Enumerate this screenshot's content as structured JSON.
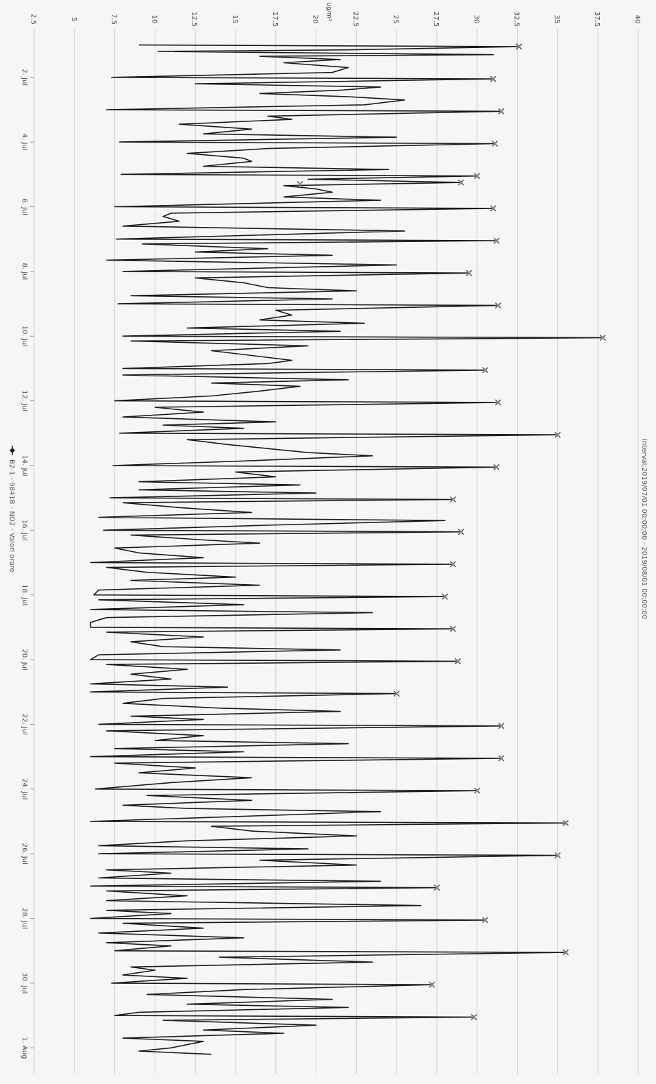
{
  "chart_data": {
    "type": "line",
    "orientation": "rotated-90-clockwise",
    "y_axis_title": "ug/m³",
    "interval_label": "Interval:2019/07/01 00:00:00 - 2019/08/01 00:00:00",
    "legend_label": "B2-1 - 9841B - NO2 - Valori orare",
    "ylim": [
      2.5,
      40
    ],
    "y_ticks": [
      "2.5",
      "5",
      "7.5",
      "10",
      "12.5",
      "15",
      "17.5",
      "20",
      "22.5",
      "25",
      "27.5",
      "30",
      "32.5",
      "35",
      "37.5",
      "40"
    ],
    "x_range_days": [
      0.5,
      32.8
    ],
    "x_ticks": [
      {
        "label": "2. Jul",
        "day": 2
      },
      {
        "label": "4. Jul",
        "day": 4
      },
      {
        "label": "6. Jul",
        "day": 6
      },
      {
        "label": "8. Jul",
        "day": 8
      },
      {
        "label": "10. Jul",
        "day": 10
      },
      {
        "label": "12. Jul",
        "day": 12
      },
      {
        "label": "14. Jul",
        "day": 14
      },
      {
        "label": "16. Jul",
        "day": 16
      },
      {
        "label": "18. Jul",
        "day": 18
      },
      {
        "label": "20. Jul",
        "day": 20
      },
      {
        "label": "22. Jul",
        "day": 22
      },
      {
        "label": "24. Jul",
        "day": 24
      },
      {
        "label": "26. Jul",
        "day": 26
      },
      {
        "label": "28. Jul",
        "day": 28
      },
      {
        "label": "30. Jul",
        "day": 30
      },
      {
        "label": "1. Aug",
        "day": 32
      }
    ],
    "grid": true,
    "legend_position": "bottom",
    "series": [
      {
        "color": "#1a1a1a",
        "values": [
          [
            1.0,
            9.0
          ],
          [
            1.05,
            32.6
          ],
          [
            1.15,
            22.0
          ],
          [
            1.2,
            10.2
          ],
          [
            1.3,
            31.0
          ],
          [
            1.35,
            16.5
          ],
          [
            1.45,
            21.5
          ],
          [
            1.55,
            18.0
          ],
          [
            1.7,
            22.0
          ],
          [
            1.85,
            21.0
          ],
          [
            2.0,
            7.3
          ],
          [
            2.05,
            31.0
          ],
          [
            2.2,
            12.5
          ],
          [
            2.3,
            24.0
          ],
          [
            2.4,
            21.5
          ],
          [
            2.5,
            16.5
          ],
          [
            2.6,
            22.0
          ],
          [
            2.7,
            25.5
          ],
          [
            2.85,
            23.0
          ],
          [
            3.0,
            7.0
          ],
          [
            3.05,
            31.5
          ],
          [
            3.2,
            17.0
          ],
          [
            3.3,
            18.5
          ],
          [
            3.45,
            11.5
          ],
          [
            3.6,
            16.0
          ],
          [
            3.75,
            13.0
          ],
          [
            3.85,
            25.0
          ],
          [
            4.0,
            7.8
          ],
          [
            4.05,
            31.1
          ],
          [
            4.2,
            17.0
          ],
          [
            4.35,
            12.0
          ],
          [
            4.5,
            15.5
          ],
          [
            4.6,
            16.0
          ],
          [
            4.75,
            13.0
          ],
          [
            4.85,
            24.5
          ],
          [
            5.0,
            7.9
          ],
          [
            5.05,
            30.0
          ],
          [
            5.15,
            19.5
          ],
          [
            5.25,
            29.0
          ],
          [
            5.35,
            18.0
          ],
          [
            5.45,
            20.0
          ],
          [
            5.55,
            21.0
          ],
          [
            5.7,
            18.0
          ],
          [
            5.8,
            24.0
          ],
          [
            6.0,
            7.5
          ],
          [
            6.05,
            31.0
          ],
          [
            6.2,
            11.0
          ],
          [
            6.3,
            10.5
          ],
          [
            6.45,
            11.5
          ],
          [
            6.6,
            8.0
          ],
          [
            6.75,
            25.5
          ],
          [
            7.0,
            7.6
          ],
          [
            7.05,
            31.2
          ],
          [
            7.15,
            9.2
          ],
          [
            7.3,
            17.0
          ],
          [
            7.4,
            12.5
          ],
          [
            7.5,
            21.0
          ],
          [
            7.65,
            7.0
          ],
          [
            7.8,
            25.0
          ],
          [
            8.0,
            8.0
          ],
          [
            8.05,
            29.5
          ],
          [
            8.2,
            12.5
          ],
          [
            8.35,
            15.5
          ],
          [
            8.5,
            17.0
          ],
          [
            8.6,
            22.5
          ],
          [
            8.75,
            8.5
          ],
          [
            8.85,
            21.0
          ],
          [
            9.0,
            7.7
          ],
          [
            9.05,
            31.3
          ],
          [
            9.2,
            17.5
          ],
          [
            9.35,
            18.5
          ],
          [
            9.5,
            16.5
          ],
          [
            9.6,
            23.0
          ],
          [
            9.75,
            12.0
          ],
          [
            9.85,
            21.5
          ],
          [
            10.0,
            8.0
          ],
          [
            10.05,
            37.8
          ],
          [
            10.15,
            8.5
          ],
          [
            10.3,
            19.5
          ],
          [
            10.45,
            13.5
          ],
          [
            10.6,
            16.0
          ],
          [
            10.75,
            18.5
          ],
          [
            10.85,
            17.0
          ],
          [
            11.0,
            8.0
          ],
          [
            11.05,
            30.5
          ],
          [
            11.2,
            8.0
          ],
          [
            11.35,
            22.0
          ],
          [
            11.45,
            13.5
          ],
          [
            11.55,
            19.0
          ],
          [
            11.7,
            16.5
          ],
          [
            11.85,
            13.5
          ],
          [
            12.0,
            7.5
          ],
          [
            12.05,
            31.3
          ],
          [
            12.2,
            10.0
          ],
          [
            12.35,
            13.0
          ],
          [
            12.5,
            8.0
          ],
          [
            12.65,
            17.5
          ],
          [
            12.75,
            10.5
          ],
          [
            12.85,
            15.5
          ],
          [
            13.0,
            7.8
          ],
          [
            13.05,
            35.0
          ],
          [
            13.2,
            12.0
          ],
          [
            13.35,
            14.5
          ],
          [
            13.5,
            17.5
          ],
          [
            13.6,
            19.5
          ],
          [
            13.7,
            23.5
          ],
          [
            13.85,
            16.0
          ],
          [
            14.0,
            7.4
          ],
          [
            14.05,
            31.2
          ],
          [
            14.2,
            15.0
          ],
          [
            14.35,
            17.5
          ],
          [
            14.5,
            9.0
          ],
          [
            14.6,
            19.0
          ],
          [
            14.75,
            9.0
          ],
          [
            14.85,
            20.0
          ],
          [
            15.0,
            7.2
          ],
          [
            15.05,
            28.5
          ],
          [
            15.15,
            8.0
          ],
          [
            15.3,
            11.5
          ],
          [
            15.45,
            16.0
          ],
          [
            15.6,
            6.5
          ],
          [
            15.7,
            28.0
          ],
          [
            15.85,
            16.5
          ],
          [
            16.0,
            6.8
          ],
          [
            16.05,
            29.0
          ],
          [
            16.15,
            8.5
          ],
          [
            16.3,
            13.0
          ],
          [
            16.4,
            16.5
          ],
          [
            16.55,
            7.5
          ],
          [
            16.7,
            9.0
          ],
          [
            16.85,
            13.0
          ],
          [
            17.0,
            6.0
          ],
          [
            17.05,
            28.5
          ],
          [
            17.15,
            7.0
          ],
          [
            17.3,
            9.5
          ],
          [
            17.45,
            15.0
          ],
          [
            17.55,
            8.5
          ],
          [
            17.7,
            16.5
          ],
          [
            17.85,
            6.5
          ],
          [
            18.0,
            6.2
          ],
          [
            18.05,
            28.0
          ],
          [
            18.15,
            6.5
          ],
          [
            18.3,
            15.5
          ],
          [
            18.45,
            6.0
          ],
          [
            18.55,
            23.5
          ],
          [
            18.7,
            7.0
          ],
          [
            18.85,
            6.0
          ],
          [
            19.0,
            6.0
          ],
          [
            19.05,
            28.5
          ],
          [
            19.15,
            7.0
          ],
          [
            19.3,
            13.0
          ],
          [
            19.45,
            8.5
          ],
          [
            19.6,
            10.5
          ],
          [
            19.7,
            21.5
          ],
          [
            19.85,
            6.5
          ],
          [
            20.0,
            6.0
          ],
          [
            20.05,
            28.8
          ],
          [
            20.15,
            7.0
          ],
          [
            20.3,
            12.0
          ],
          [
            20.45,
            8.5
          ],
          [
            20.6,
            11.0
          ],
          [
            20.75,
            6.0
          ],
          [
            20.85,
            14.5
          ],
          [
            21.0,
            6.0
          ],
          [
            21.05,
            25.0
          ],
          [
            21.2,
            10.5
          ],
          [
            21.35,
            8.0
          ],
          [
            21.5,
            14.0
          ],
          [
            21.6,
            21.5
          ],
          [
            21.75,
            8.5
          ],
          [
            21.85,
            13.0
          ],
          [
            22.0,
            6.5
          ],
          [
            22.05,
            31.5
          ],
          [
            22.2,
            7.0
          ],
          [
            22.35,
            13.0
          ],
          [
            22.5,
            10.0
          ],
          [
            22.6,
            22.0
          ],
          [
            22.75,
            7.5
          ],
          [
            22.85,
            15.5
          ],
          [
            23.0,
            6.0
          ],
          [
            23.05,
            31.5
          ],
          [
            23.2,
            7.5
          ],
          [
            23.35,
            12.5
          ],
          [
            23.5,
            9.0
          ],
          [
            23.65,
            16.0
          ],
          [
            23.8,
            11.0
          ],
          [
            24.0,
            6.3
          ],
          [
            24.05,
            30.0
          ],
          [
            24.2,
            9.5
          ],
          [
            24.35,
            16.0
          ],
          [
            24.5,
            8.0
          ],
          [
            24.6,
            12.0
          ],
          [
            24.7,
            24.0
          ],
          [
            24.85,
            15.0
          ],
          [
            25.0,
            6.0
          ],
          [
            25.05,
            35.5
          ],
          [
            25.15,
            13.5
          ],
          [
            25.3,
            16.0
          ],
          [
            25.45,
            22.5
          ],
          [
            25.6,
            12.0
          ],
          [
            25.75,
            6.5
          ],
          [
            25.85,
            19.5
          ],
          [
            26.0,
            6.5
          ],
          [
            26.05,
            35.0
          ],
          [
            26.2,
            16.5
          ],
          [
            26.35,
            22.5
          ],
          [
            26.5,
            7.0
          ],
          [
            26.6,
            11.0
          ],
          [
            26.75,
            6.5
          ],
          [
            26.85,
            24.0
          ],
          [
            27.0,
            6.0
          ],
          [
            27.05,
            27.5
          ],
          [
            27.15,
            7.0
          ],
          [
            27.3,
            12.0
          ],
          [
            27.45,
            7.0
          ],
          [
            27.6,
            26.5
          ],
          [
            27.75,
            7.0
          ],
          [
            27.85,
            11.0
          ],
          [
            28.0,
            6.0
          ],
          [
            28.05,
            30.5
          ],
          [
            28.15,
            8.0
          ],
          [
            28.3,
            13.0
          ],
          [
            28.45,
            6.5
          ],
          [
            28.6,
            15.5
          ],
          [
            28.75,
            7.0
          ],
          [
            28.85,
            11.0
          ],
          [
            29.0,
            7.5
          ],
          [
            29.05,
            35.5
          ],
          [
            29.2,
            14.0
          ],
          [
            29.35,
            23.5
          ],
          [
            29.5,
            8.5
          ],
          [
            29.6,
            10.0
          ],
          [
            29.75,
            8.0
          ],
          [
            29.85,
            12.0
          ],
          [
            30.0,
            7.3
          ],
          [
            30.05,
            27.2
          ],
          [
            30.2,
            15.5
          ],
          [
            30.35,
            9.5
          ],
          [
            30.5,
            21.0
          ],
          [
            30.65,
            12.0
          ],
          [
            30.75,
            22.0
          ],
          [
            30.9,
            9.0
          ],
          [
            31.0,
            7.5
          ],
          [
            31.05,
            29.8
          ],
          [
            31.15,
            10.5
          ],
          [
            31.3,
            20.0
          ],
          [
            31.45,
            13.0
          ],
          [
            31.55,
            18.0
          ],
          [
            31.7,
            8.0
          ],
          [
            31.8,
            13.0
          ],
          [
            32.0,
            11.0
          ],
          [
            32.1,
            9.0
          ],
          [
            32.2,
            13.5
          ]
        ]
      }
    ],
    "daily_max_markers": [
      [
        1.05,
        32.6
      ],
      [
        2.05,
        31.0
      ],
      [
        3.05,
        31.5
      ],
      [
        4.05,
        31.1
      ],
      [
        5.05,
        30.0
      ],
      [
        5.25,
        29.0
      ],
      [
        5.3,
        19.0
      ],
      [
        6.05,
        31.0
      ],
      [
        7.05,
        31.2
      ],
      [
        8.05,
        29.5
      ],
      [
        9.05,
        31.3
      ],
      [
        10.05,
        37.8
      ],
      [
        11.05,
        30.5
      ],
      [
        12.05,
        31.3
      ],
      [
        13.05,
        35.0
      ],
      [
        14.05,
        31.2
      ],
      [
        15.05,
        28.5
      ],
      [
        16.05,
        29.0
      ],
      [
        17.05,
        28.5
      ],
      [
        18.05,
        28.0
      ],
      [
        19.05,
        28.5
      ],
      [
        20.05,
        28.8
      ],
      [
        21.05,
        25.0
      ],
      [
        22.05,
        31.5
      ],
      [
        23.05,
        31.5
      ],
      [
        24.05,
        30.0
      ],
      [
        25.05,
        35.5
      ],
      [
        26.05,
        35.0
      ],
      [
        27.05,
        27.5
      ],
      [
        28.05,
        30.5
      ],
      [
        29.05,
        35.5
      ],
      [
        30.05,
        27.2
      ],
      [
        31.05,
        29.8
      ]
    ]
  }
}
